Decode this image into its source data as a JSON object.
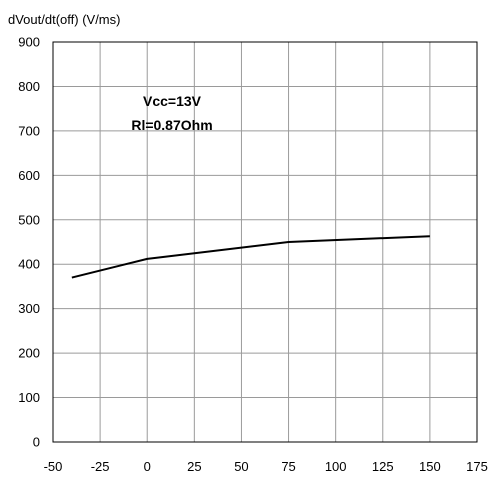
{
  "chart_data": {
    "type": "line",
    "ylabel": "dVout/dt(off) (V/ms)",
    "xlabel": "",
    "title": "",
    "xlim": [
      -50,
      175
    ],
    "ylim": [
      0,
      900
    ],
    "x_ticks": [
      -50,
      -25,
      0,
      25,
      50,
      75,
      100,
      125,
      150,
      175
    ],
    "y_ticks": [
      0,
      100,
      200,
      300,
      400,
      500,
      600,
      700,
      800,
      900
    ],
    "grid": true,
    "annotations": [
      "Vcc=13V",
      "Rl=0.87Ohm"
    ],
    "series": [
      {
        "x": [
          -40,
          0,
          75,
          150
        ],
        "y": [
          370,
          412,
          450,
          463
        ],
        "color": "#000000"
      }
    ]
  }
}
